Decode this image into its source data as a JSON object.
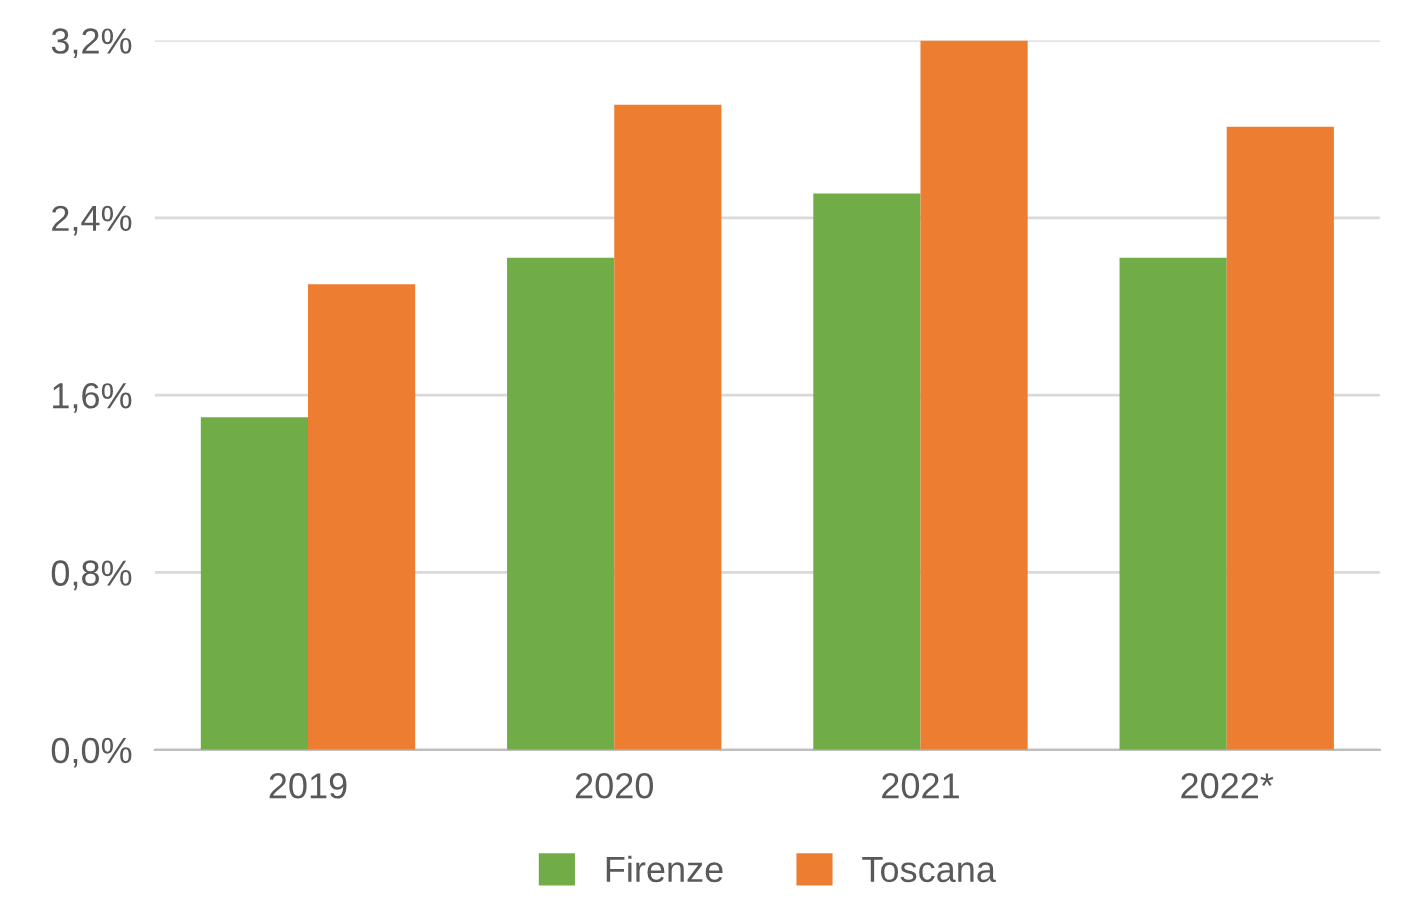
{
  "chart_data": {
    "type": "bar",
    "categories": [
      "2019",
      "2020",
      "2021",
      "2022*"
    ],
    "series": [
      {
        "name": "Firenze",
        "color": "#70ad47",
        "values": [
          1.5,
          2.22,
          2.51,
          2.22
        ]
      },
      {
        "name": "Toscana",
        "color": "#ed7d31",
        "values": [
          2.1,
          2.91,
          3.2,
          2.81
        ]
      }
    ],
    "ylim": [
      0,
      3.2
    ],
    "yticks": [
      {
        "value": 0,
        "label": "0,0%"
      },
      {
        "value": 0.8,
        "label": "0,8%"
      },
      {
        "value": 1.6,
        "label": "1,6%"
      },
      {
        "value": 2.4,
        "label": "2,4%"
      },
      {
        "value": 3.2,
        "label": "3,2%"
      }
    ],
    "grid": "y",
    "legend": "bottom"
  }
}
